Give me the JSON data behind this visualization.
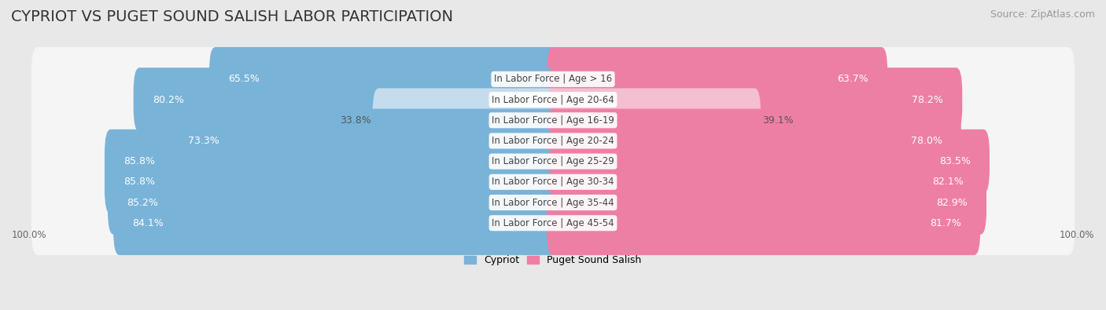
{
  "title": "CYPRIOT VS PUGET SOUND SALISH LABOR PARTICIPATION",
  "source": "Source: ZipAtlas.com",
  "categories": [
    "In Labor Force | Age > 16",
    "In Labor Force | Age 20-64",
    "In Labor Force | Age 16-19",
    "In Labor Force | Age 20-24",
    "In Labor Force | Age 25-29",
    "In Labor Force | Age 30-34",
    "In Labor Force | Age 35-44",
    "In Labor Force | Age 45-54"
  ],
  "cypriot_values": [
    65.5,
    80.2,
    33.8,
    73.3,
    85.8,
    85.8,
    85.2,
    84.1
  ],
  "puget_values": [
    63.7,
    78.2,
    39.1,
    78.0,
    83.5,
    82.1,
    82.9,
    81.7
  ],
  "cypriot_labels": [
    "65.5%",
    "80.2%",
    "33.8%",
    "73.3%",
    "85.8%",
    "85.8%",
    "85.2%",
    "84.1%"
  ],
  "puget_labels": [
    "63.7%",
    "78.2%",
    "39.1%",
    "78.0%",
    "83.5%",
    "82.1%",
    "82.9%",
    "81.7%"
  ],
  "cypriot_color_high": "#7ab3d8",
  "cypriot_color_low": "#c5dced",
  "puget_color_high": "#ee7fa4",
  "puget_color_low": "#f4bfd0",
  "bg_color": "#e8e8e8",
  "bar_bg_color": "#f5f5f5",
  "axis_label_left": "100.0%",
  "axis_label_right": "100.0%",
  "legend_cypriot": "Cypriot",
  "legend_puget": "Puget Sound Salish",
  "max_val": 100.0,
  "threshold": 50.0,
  "title_fontsize": 14,
  "source_fontsize": 9,
  "label_fontsize": 9,
  "cat_fontsize": 8.5
}
